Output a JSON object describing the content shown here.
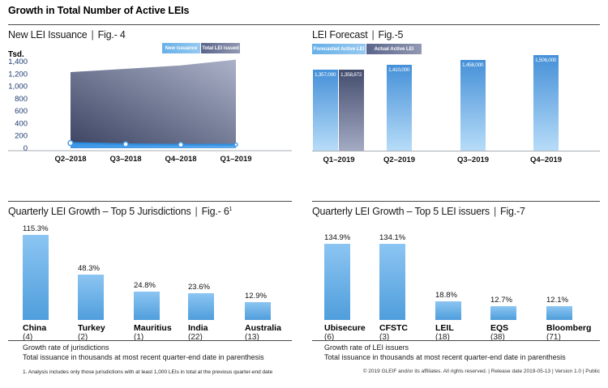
{
  "page": {
    "title": "Growth in Total Number of Active LEIs",
    "separator": "|",
    "footnote": "1. Analysis includes only those jurisdictions with at least 1,000 LEIs in total at the previous quarter-end date",
    "footer": "© 2019 GLEIF and/or its affiliates. All rights reserved.  |  Release date 2019-05-13  |  Version 1.0  |  Public"
  },
  "colors": {
    "accent_blue": "#4599e2",
    "forecast_bar_top": "#4590d8",
    "forecast_bar_bottom": "#b7dcf8",
    "actual_bar_top": "#444d6e",
    "actual_bar_bottom": "#a3aac3",
    "growth_bar_top": "#8cc5f2",
    "growth_bar_bottom": "#4f9edc",
    "axis_tick_label": "#1c3a6e"
  },
  "chart_data": [
    {
      "id": "fig4",
      "type": "area",
      "title": "New LEI Issuance",
      "fig": "Fig.- 4",
      "unit": "Tsd.",
      "legend": [
        "New issuance",
        "Total LEI issued"
      ],
      "legend_position": "top-right",
      "x": [
        "Q2–2018",
        "Q3–2018",
        "Q4–2018",
        "Q1–2019"
      ],
      "series": [
        {
          "name": "New issuance",
          "values": [
            84,
            64,
            56,
            58
          ]
        },
        {
          "name": "Total LEI issued",
          "values": [
            1230,
            1282,
            1338,
            1432
          ]
        }
      ],
      "ylabel": "Tsd.",
      "ylim": [
        0,
        1400
      ],
      "yticks": [
        "1,400",
        "1,200",
        "1,000",
        "800",
        "600",
        "400",
        "200",
        "0"
      ],
      "grid": "off"
    },
    {
      "id": "fig5",
      "type": "bar",
      "title": "LEI Forecast",
      "fig": "Fig.-5",
      "legend": [
        "Forecasted Active LEI",
        "Actual Active LEI"
      ],
      "legend_position": "top-left",
      "categories": [
        "Q1–2019",
        "Q2–2019",
        "Q3–2019",
        "Q4–2019"
      ],
      "series": [
        {
          "name": "Forecasted Active LEI",
          "values": [
            1357000,
            1410000,
            1458000,
            1506000
          ],
          "labels": [
            "1,357,000",
            "1,410,000",
            "1,458,000",
            "1,506,000"
          ]
        },
        {
          "name": "Actual Active LEI",
          "values": [
            1358872,
            null,
            null,
            null
          ],
          "labels": [
            "1,358,872",
            null,
            null,
            null
          ]
        }
      ],
      "grid": "off"
    },
    {
      "id": "fig6",
      "type": "bar",
      "title": "Quarterly LEI Growth – Top 5 Jurisdictions",
      "fig": "Fig.- 6",
      "fig_superscript": "1",
      "categories": [
        "China",
        "Turkey",
        "Mauritius",
        "India",
        "Australia"
      ],
      "counts": [
        "(4)",
        "(2)",
        "(1)",
        "(22)",
        "(13)"
      ],
      "values": [
        115.3,
        48.3,
        24.8,
        23.6,
        12.9
      ],
      "value_labels": [
        "115.3%",
        "48.3%",
        "24.8%",
        "23.6%",
        "12.9%"
      ],
      "notes": [
        "Growth rate of jurisdictions",
        "Total issuance in thousands at most recent quarter-end date in parenthesis"
      ],
      "grid": "off"
    },
    {
      "id": "fig7",
      "type": "bar",
      "title": "Quarterly LEI Growth – Top 5 LEI issuers",
      "fig": "Fig.-7",
      "categories": [
        "Ubisecure",
        "CFSTC",
        "LEIL",
        "EQS",
        "Bloomberg"
      ],
      "counts": [
        "(6)",
        "(3)",
        "(18)",
        "(38)",
        "(71)"
      ],
      "values": [
        134.9,
        134.1,
        18.8,
        12.7,
        12.1
      ],
      "value_labels": [
        "134.9%",
        "134.1%",
        "18.8%",
        "12.7%",
        "12.1%"
      ],
      "notes": [
        "Growth rate of LEI issuers",
        "Total issuance in thousands at most recent quarter-end date in parenthesis"
      ],
      "grid": "off"
    }
  ]
}
